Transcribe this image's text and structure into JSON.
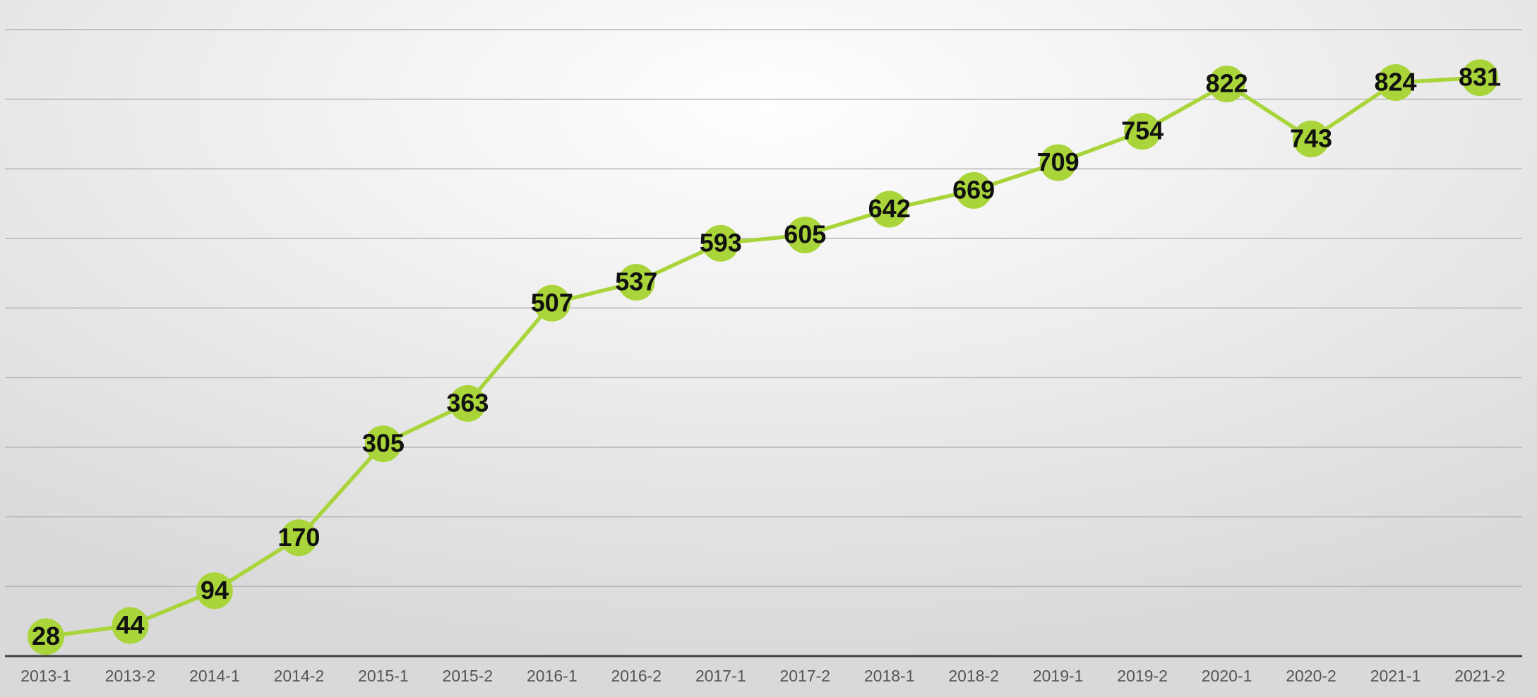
{
  "chart_data": {
    "type": "line",
    "categories": [
      "2013-1",
      "2013-2",
      "2014-1",
      "2014-2",
      "2015-1",
      "2015-2",
      "2016-1",
      "2016-2",
      "2017-1",
      "2017-2",
      "2018-1",
      "2018-2",
      "2019-1",
      "2019-2",
      "2020-1",
      "2020-2",
      "2021-1",
      "2021-2"
    ],
    "series": [
      {
        "color": "#a9d53b",
        "values": [
          28,
          44,
          94,
          170,
          305,
          363,
          507,
          537,
          593,
          605,
          642,
          669,
          709,
          754,
          822,
          743,
          824,
          831
        ]
      }
    ],
    "ylim": [
      0,
      900
    ],
    "yticks": [
      0,
      100,
      200,
      300,
      400,
      500,
      600,
      700,
      800,
      900
    ],
    "grid": true
  }
}
